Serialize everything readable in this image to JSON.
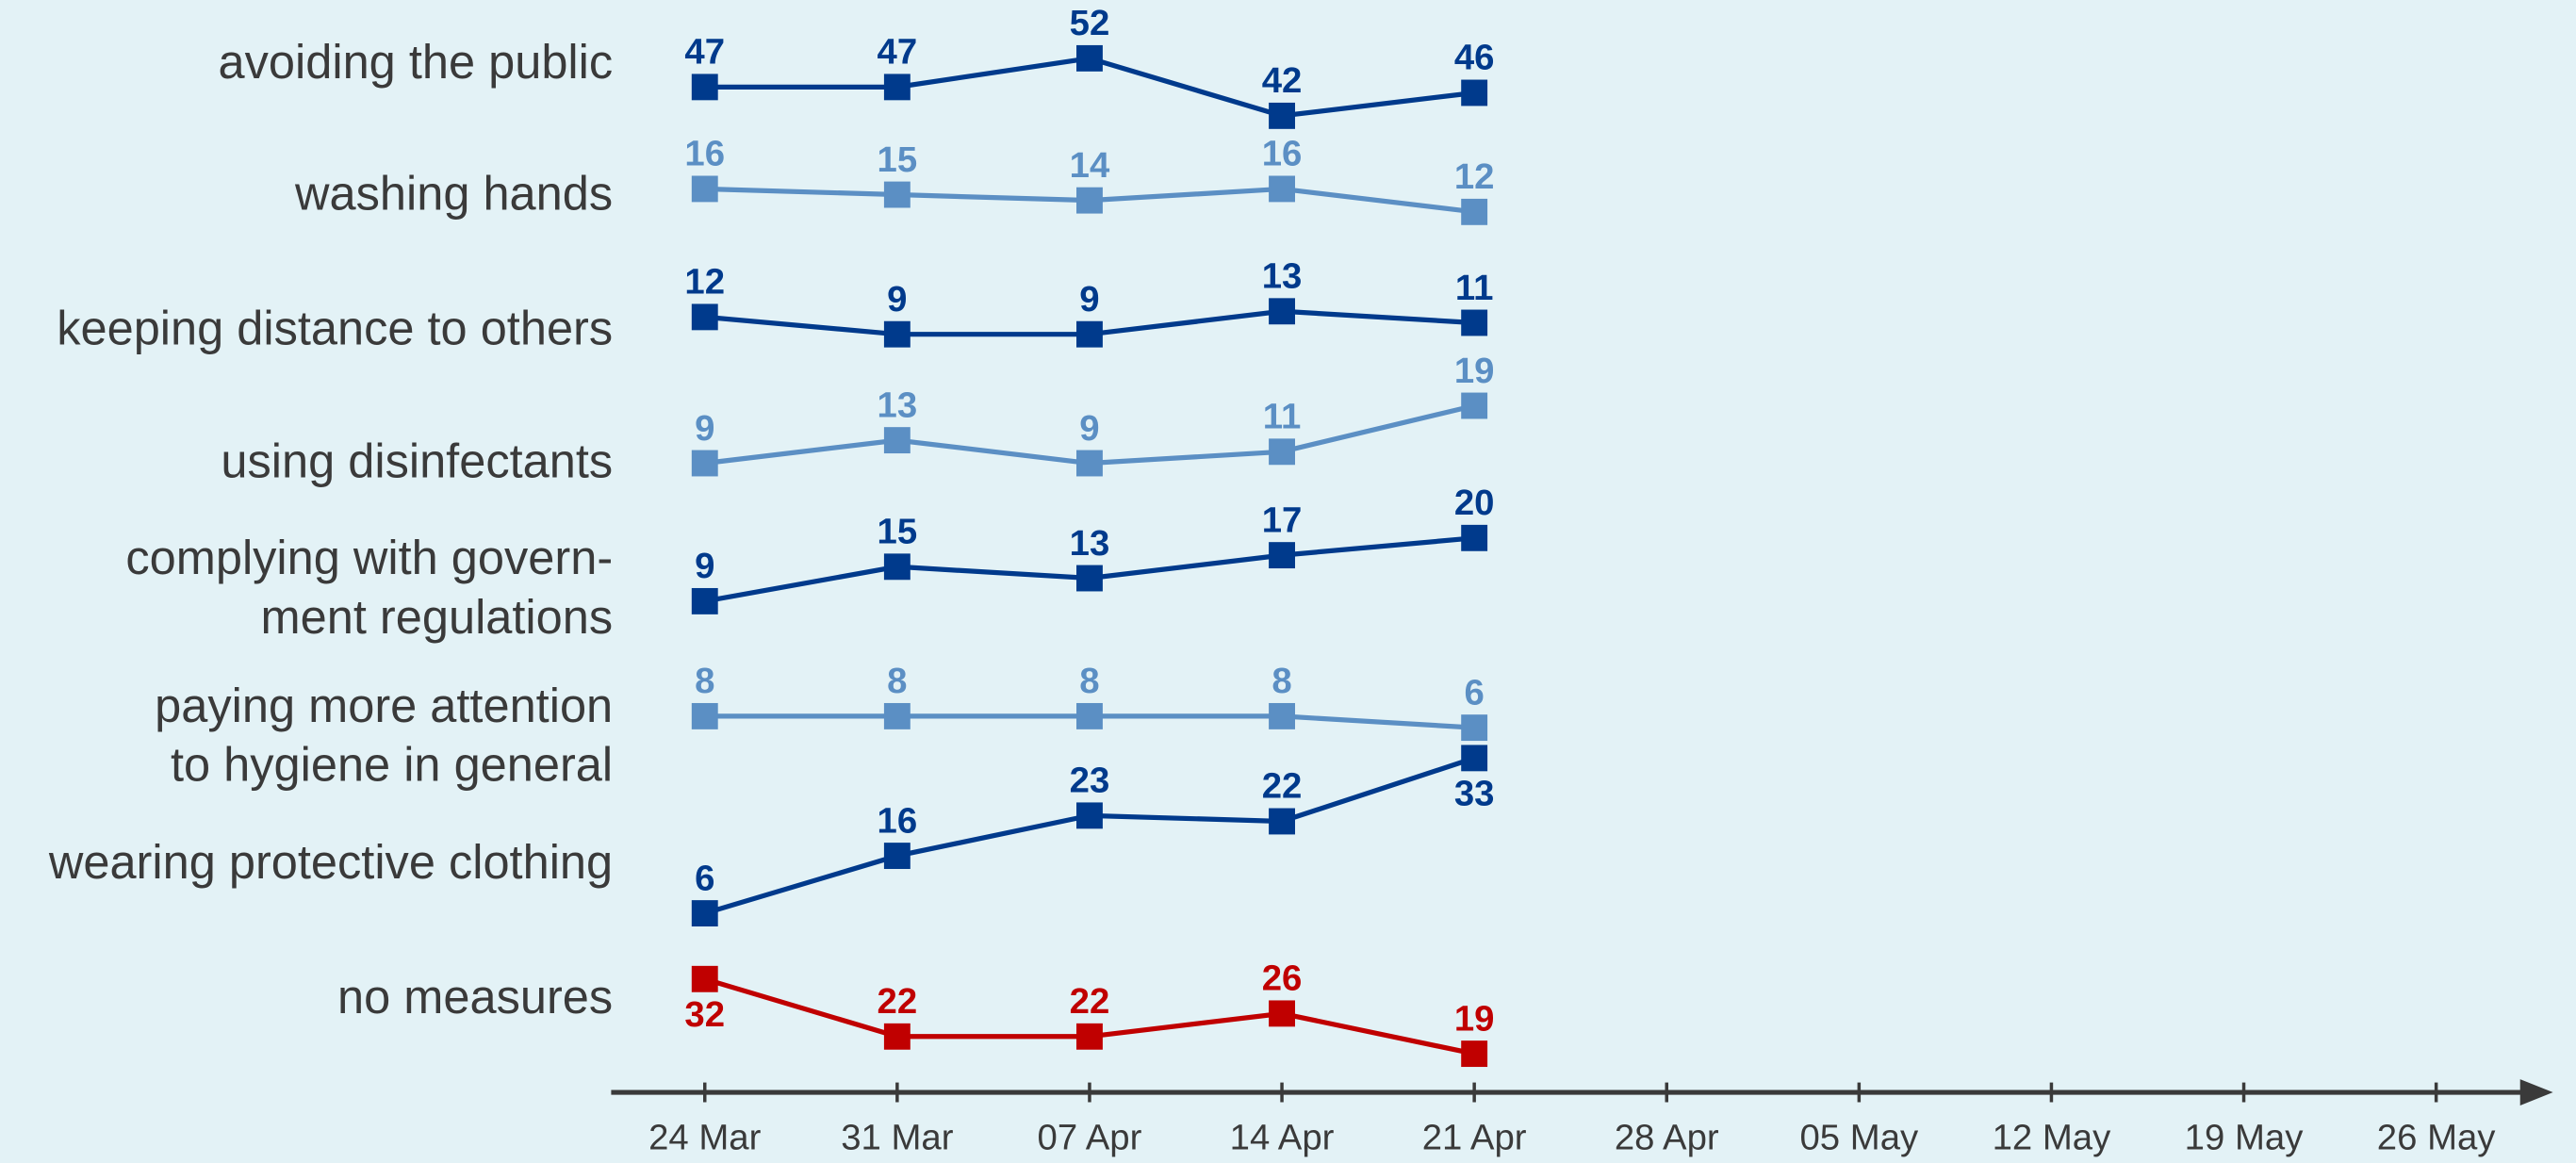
{
  "chart_data": {
    "type": "line",
    "categories": [
      "24 Mar",
      "31 Mar",
      "07 Apr",
      "14 Apr",
      "21 Apr",
      "28 Apr",
      "05 May",
      "12 May",
      "19 May",
      "26 May"
    ],
    "series": [
      {
        "name": "avoiding the public",
        "color": "#003a8c",
        "values": [
          47,
          47,
          52,
          42,
          46,
          null,
          null,
          null,
          null,
          null
        ]
      },
      {
        "name": "washing hands",
        "color": "#5b8fc4",
        "values": [
          16,
          15,
          14,
          16,
          12,
          null,
          null,
          null,
          null,
          null
        ]
      },
      {
        "name": "keeping distance to others",
        "color": "#003a8c",
        "values": [
          12,
          9,
          9,
          13,
          11,
          null,
          null,
          null,
          null,
          null
        ]
      },
      {
        "name": "using disinfectants",
        "color": "#5b8fc4",
        "values": [
          9,
          13,
          9,
          11,
          19,
          null,
          null,
          null,
          null,
          null
        ]
      },
      {
        "name": "complying with govern-\nment regulations",
        "color": "#003a8c",
        "values": [
          9,
          15,
          13,
          17,
          20,
          null,
          null,
          null,
          null,
          null
        ]
      },
      {
        "name": "paying more attention\nto hygiene in general",
        "color": "#5b8fc4",
        "values": [
          8,
          8,
          8,
          8,
          6,
          null,
          null,
          null,
          null,
          null
        ]
      },
      {
        "name": "wearing protective clothing",
        "color": "#003a8c",
        "values": [
          6,
          16,
          23,
          22,
          33,
          null,
          null,
          null,
          null,
          null
        ]
      },
      {
        "name": "no measures",
        "color": "#c00000",
        "values": [
          32,
          22,
          22,
          26,
          19,
          null,
          null,
          null,
          null,
          null
        ]
      }
    ]
  }
}
